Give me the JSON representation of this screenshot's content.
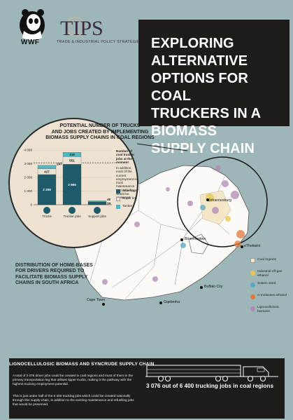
{
  "header": {
    "wwf_logo_text": "WWF",
    "tips_logo_text": "TIPS",
    "tips_subtitle": "Trade & Industrial Policy Strategies"
  },
  "title": {
    "lines": [
      "EXPLORING ALTERNATIVE",
      "OPTIONS FOR COAL",
      "TRUCKERS IN A BIOMASS",
      "SUPPLY CHAIN"
    ]
  },
  "chart_panel": {
    "title_lines": [
      "POTENTIAL NUMBER OF TRUCKS",
      "AND JOBS CREATED BY IMPLEMENTING",
      "BIOMASS SUPPLY CHAINS IN COAL REGIONS"
    ],
    "note_title": "Number of coal trucker jobs at the moment",
    "note_body": "In addition, most of the current employment in truck maintenance and refuelling would be preserved",
    "legend": [
      "Side tipper",
      "Super link",
      "Tanker"
    ]
  },
  "chart_data": {
    "type": "bar",
    "stacked": true,
    "categories": [
      "Trucks",
      "Trucker jobs",
      "Support jobs"
    ],
    "ylim": [
      0,
      4000
    ],
    "yticks": [
      "0",
      "1 000",
      "2 000",
      "3 000",
      "4 000"
    ],
    "series": [
      {
        "name": "Side tipper",
        "values": [
          2208,
          2965,
          207
        ],
        "labels": [
          "2 208",
          "2 965",
          "207"
        ],
        "color": "#1d5a6a"
      },
      {
        "name": "Super link",
        "values": [
          427,
          551,
          34
        ],
        "labels": [
          "427",
          "551",
          "34"
        ],
        "color": "#e9e3d5"
      },
      {
        "name": "Tanker",
        "values": [
          247,
          319,
          48
        ],
        "labels": [
          "247",
          "319",
          "48"
        ],
        "color": "#4fb8c4"
      }
    ],
    "reference_value": 3076
  },
  "map": {
    "caption_lines": [
      "DISTRIBUTION OF HOME-BASES",
      "FOR DRIVERS REQUIRED TO",
      "FACILITATE BIOMASS SUPPLY",
      "CHAINS IN SOUTH AFRICA"
    ],
    "cities": [
      "Johannesburg",
      "Bloemfontein",
      "eThekwini",
      "Buffalo City",
      "Cape Town",
      "Gqeberha"
    ],
    "legend": [
      {
        "label": "Coal regions",
        "color": "#f3e7c8"
      },
      {
        "label": "Industrial off-gas ethanol",
        "color": "#e6c94a"
      },
      {
        "label": "Solaris seed",
        "color": "#5aa6c5"
      },
      {
        "label": "A-molasses ethanol",
        "color": "#e07a3c"
      },
      {
        "label": "Lignocellulosic biomass",
        "color": "#b08ab5"
      }
    ]
  },
  "bottom": {
    "title": "LIGNOCELLULOSIC BIOMASS AND SYNCRUDE SUPPLY CHAIN",
    "p1": "A total of 3 076 driver jobs could be created in coal regions and most of them in the primary transportation leg that utilises tipper trucks, making it the pathway with the highest trucking employment potential.",
    "p2": "This is just under half of the 6 400 trucking jobs which could be created nationally through this supply chain, in addition to the existing maintenance and refuelling jobs that would be preserved.",
    "stat": "3 076 out of 6 400 trucking jobs in coal regions"
  }
}
